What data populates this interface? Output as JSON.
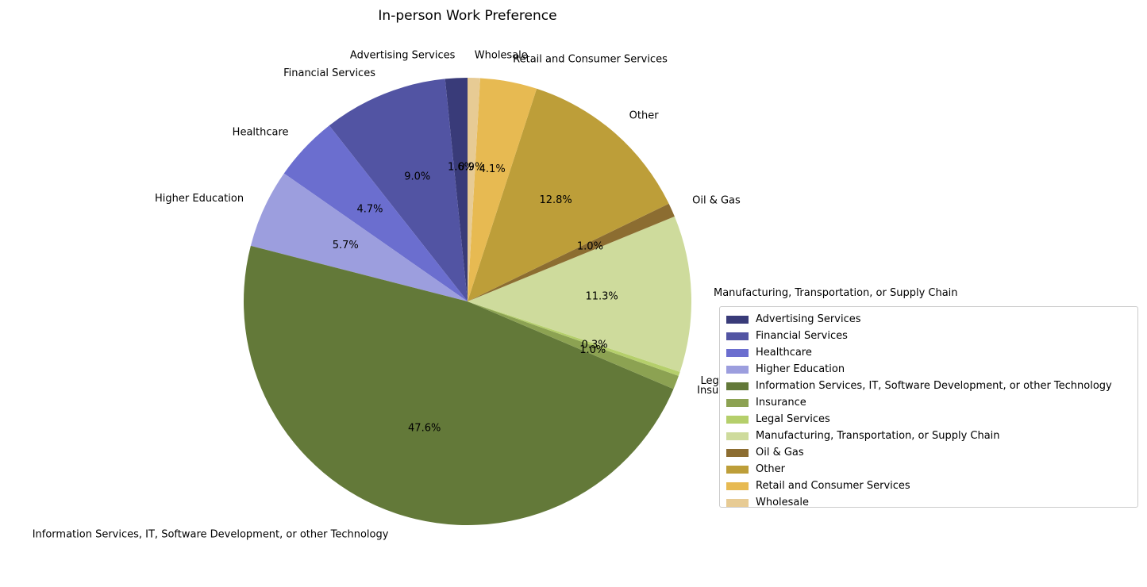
{
  "chart_data": {
    "type": "pie",
    "title": "In-person Work Preference",
    "slices": [
      {
        "label": "Advertising Services",
        "value": 1.6,
        "pct_label": "1.6%",
        "color": "#393b79"
      },
      {
        "label": "Financial Services",
        "value": 9.0,
        "pct_label": "9.0%",
        "color": "#5254a3"
      },
      {
        "label": "Healthcare",
        "value": 4.7,
        "pct_label": "4.7%",
        "color": "#6b6ecf"
      },
      {
        "label": "Higher Education",
        "value": 5.7,
        "pct_label": "5.7%",
        "color": "#9c9ede"
      },
      {
        "label": "Information Services, IT, Software Development, or other Technology",
        "value": 47.6,
        "pct_label": "47.6%",
        "color": "#637939"
      },
      {
        "label": "Insurance",
        "value": 1.0,
        "pct_label": "1.0%",
        "color": "#8ca252"
      },
      {
        "label": "Legal Services",
        "value": 0.3,
        "pct_label": "0.3%",
        "color": "#b5cf6b"
      },
      {
        "label": "Manufacturing, Transportation, or Supply Chain",
        "value": 11.3,
        "pct_label": "11.3%",
        "color": "#cedb9c"
      },
      {
        "label": "Oil & Gas",
        "value": 1.0,
        "pct_label": "1.0%",
        "color": "#8c6d31"
      },
      {
        "label": "Other",
        "value": 12.8,
        "pct_label": "12.8%",
        "color": "#bd9e39"
      },
      {
        "label": "Retail and Consumer Services",
        "value": 4.1,
        "pct_label": "4.1%",
        "color": "#e7ba52"
      },
      {
        "label": "Wholesale",
        "value": 0.9,
        "pct_label": "0.9%",
        "color": "#e7cb94"
      }
    ],
    "start_angle_deg": 90,
    "direction": "counterclockwise",
    "legend_position": "center-right"
  }
}
